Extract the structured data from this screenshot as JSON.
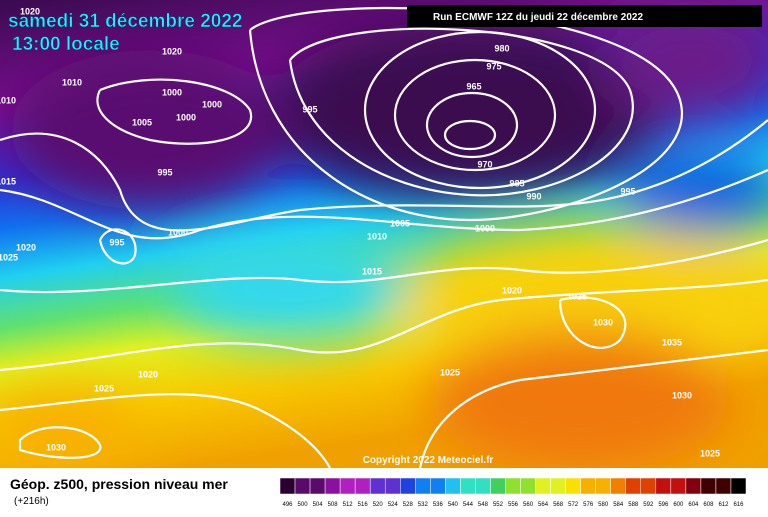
{
  "header": {
    "date": "samedi 31 décembre 2022",
    "time": "13:00 locale",
    "run": "Run ECMWF 12Z du jeudi 22 décembre 2022"
  },
  "map": {
    "isobar_labels": [
      "1020",
      "1020",
      "1010",
      "1000",
      "1000",
      "1005",
      "1000",
      "995",
      "980",
      "975",
      "965",
      "970",
      "985",
      "990",
      "995",
      "995",
      "1000",
      "995",
      "1005",
      "1010",
      "1000",
      "1015",
      "1020",
      "1025",
      "1015",
      "1010",
      "1020",
      "1025",
      "1030",
      "1035",
      "1025",
      "1020",
      "1025",
      "1030",
      "1030",
      "1025"
    ],
    "copyright": "Copyright 2022 Meteociel.fr"
  },
  "footer": {
    "title": "Géop. z500, pression niveau mer",
    "lead": "(+216h)"
  },
  "scale": {
    "labels": [
      496,
      500,
      504,
      508,
      512,
      516,
      520,
      524,
      528,
      532,
      536,
      540,
      544,
      548,
      552,
      556,
      560,
      564,
      568,
      572,
      576,
      580,
      584,
      588,
      592,
      596,
      600,
      604,
      608,
      612,
      616
    ]
  }
}
